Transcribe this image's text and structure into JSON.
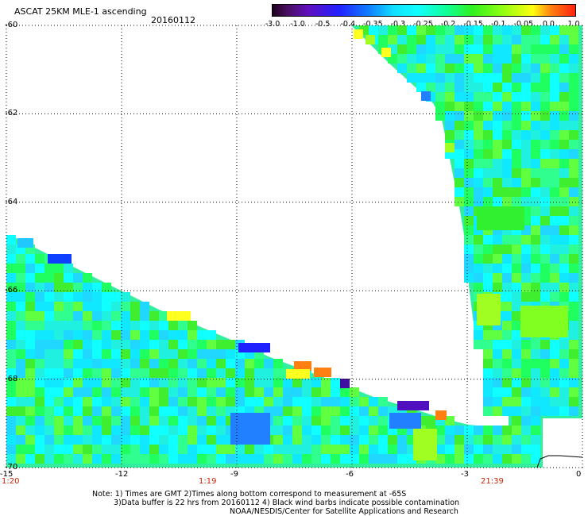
{
  "header": {
    "title": "ASCAT 25KM MLE-1 ascending",
    "date": "20160112"
  },
  "colorbar": {
    "labels": [
      "-3.0",
      "-1.0",
      "-0.5",
      "-0.4",
      "-0.35",
      "-0.3",
      "-0.25",
      "-0.2",
      "-0.15",
      "-0.1",
      "-0.05",
      "0.0",
      "1.0"
    ],
    "colors": [
      "#2a0a30",
      "#5a1a8a",
      "#6a10d0",
      "#1a10ff",
      "#1070ff",
      "#10c8ff",
      "#10ffff",
      "#10ff80",
      "#30f010",
      "#a0ff10",
      "#ffff10",
      "#ff8010",
      "#ff2010"
    ]
  },
  "map": {
    "lon_min": -15,
    "lon_max": 0,
    "lat_min": -70,
    "lat_max": -60,
    "lon_ticks": [
      "-15",
      "-12",
      "-9",
      "-6",
      "-3",
      "0"
    ],
    "lat_ticks": [
      "-60",
      "-62",
      "-64",
      "-66",
      "-68",
      "-70"
    ],
    "time_labels": [
      "1:20",
      "1:19",
      "21:39"
    ]
  },
  "notes": {
    "line1": "Note: 1) Times are GMT 2)Times along bottom correspond to measurement at -65S",
    "line2": "3)Data buffer is 22 hrs from 20160112 4) Black wind barbs indicate possible contamination",
    "line3": "NOAA/NESDIS/Center for Satellite Applications and Research"
  }
}
